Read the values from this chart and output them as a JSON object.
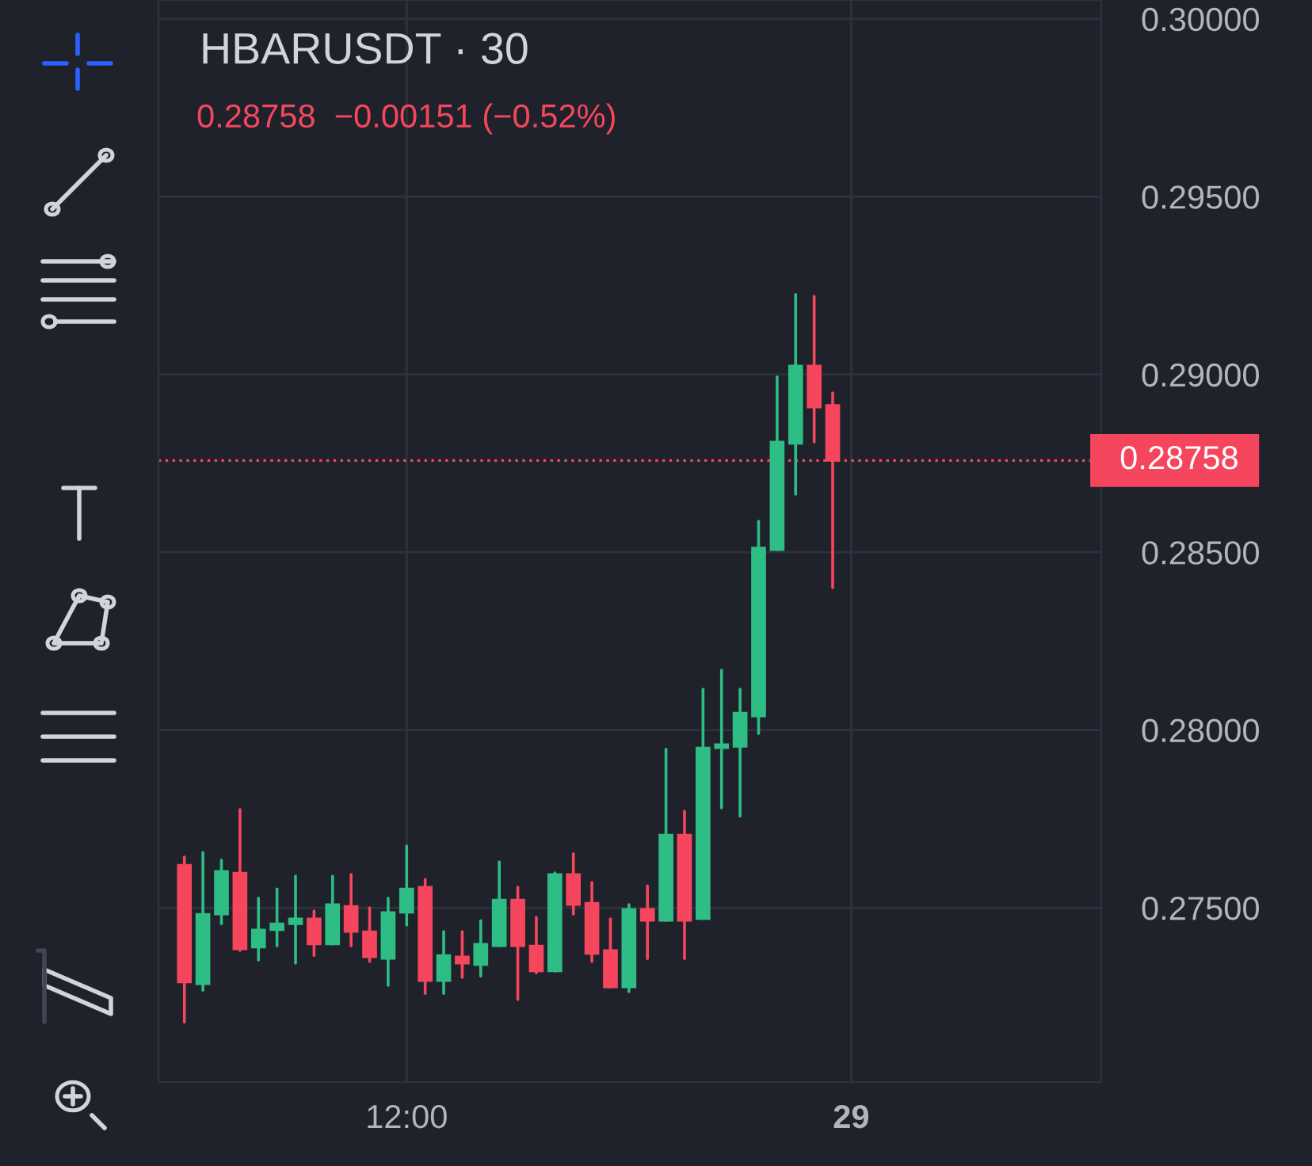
{
  "chart_data": {
    "type": "candlestick",
    "title": "HBARUSDT · 30",
    "subtitle": "0.28758  −0.00151 (−0.52%)",
    "categories": [
      null,
      null,
      null,
      null,
      null,
      null,
      null,
      null,
      null,
      null,
      null,
      null,
      "12:00",
      null,
      null,
      null,
      null,
      null,
      null,
      null,
      null,
      null,
      null,
      null,
      null,
      null,
      null,
      null,
      null,
      null,
      null,
      null,
      null,
      null,
      null,
      null,
      "29",
      null,
      null,
      null,
      null,
      null,
      null,
      null,
      null,
      null,
      null,
      null,
      null,
      null
    ],
    "ohlc": [
      [
        0.2762,
        0.27643,
        0.27179,
        0.27291
      ],
      [
        0.27286,
        0.27656,
        0.27268,
        0.27482
      ],
      [
        0.27482,
        0.27634,
        0.27455,
        0.27603
      ],
      [
        0.27598,
        0.27776,
        0.2738,
        0.27384
      ],
      [
        0.27389,
        0.27527,
        0.27353,
        0.27438
      ],
      [
        0.27438,
        0.27553,
        0.27393,
        0.27455
      ],
      [
        0.27455,
        0.27589,
        0.27344,
        0.27469
      ],
      [
        0.27469,
        0.27491,
        0.27366,
        0.27398
      ],
      [
        0.27398,
        0.27589,
        0.27398,
        0.27509
      ],
      [
        0.27504,
        0.27594,
        0.27393,
        0.27433
      ],
      [
        0.27433,
        0.275,
        0.27349,
        0.27362
      ],
      [
        0.27357,
        0.27527,
        0.27282,
        0.27487
      ],
      [
        0.27487,
        0.27674,
        0.27451,
        0.27553
      ],
      [
        0.27558,
        0.2758,
        0.27259,
        0.27295
      ],
      [
        0.27295,
        0.27433,
        0.27259,
        0.27366
      ],
      [
        0.27362,
        0.27433,
        0.27304,
        0.27344
      ],
      [
        0.2734,
        0.27464,
        0.27308,
        0.27398
      ],
      [
        0.27393,
        0.27629,
        0.27393,
        0.27522
      ],
      [
        0.27522,
        0.27558,
        0.27242,
        0.27393
      ],
      [
        0.27393,
        0.27473,
        0.27317,
        0.27322
      ],
      [
        0.27322,
        0.27598,
        0.27322,
        0.27594
      ],
      [
        0.27594,
        0.27652,
        0.27482,
        0.27509
      ],
      [
        0.27513,
        0.27571,
        0.27349,
        0.27371
      ],
      [
        0.2738,
        0.27469,
        0.27277,
        0.27277
      ],
      [
        0.27277,
        0.27509,
        0.27264,
        0.27496
      ],
      [
        0.27496,
        0.27562,
        0.27357,
        0.27464
      ],
      [
        0.27464,
        0.27946,
        0.27464,
        0.27705
      ],
      [
        0.27705,
        0.27772,
        0.27357,
        0.27464
      ],
      [
        0.27469,
        0.28115,
        0.27469,
        0.2795
      ],
      [
        0.2795,
        0.28168,
        0.27781,
        0.27959
      ],
      [
        0.27954,
        0.28115,
        0.27758,
        0.28048
      ],
      [
        0.28039,
        0.28587,
        0.2799,
        0.28512
      ],
      [
        0.28507,
        0.28993,
        0.28507,
        0.2881
      ],
      [
        0.28806,
        0.29225,
        0.28663,
        0.29024
      ],
      [
        0.29024,
        0.2922,
        0.2881,
        0.28908
      ],
      [
        0.28913,
        0.28948,
        0.284,
        0.28758
      ],
      null,
      null,
      null,
      null,
      null,
      null,
      null,
      null,
      null,
      null,
      null,
      null,
      null,
      null
    ],
    "colors": [
      "#f6465d",
      "#2ebd85",
      "#2ebd85",
      "#f6465d",
      "#2ebd85",
      "#2ebd85",
      "#2ebd85",
      "#f6465d",
      "#2ebd85",
      "#f6465d",
      "#f6465d",
      "#2ebd85",
      "#2ebd85",
      "#f6465d",
      "#2ebd85",
      "#f6465d",
      "#2ebd85",
      "#2ebd85",
      "#f6465d",
      "#f6465d",
      "#2ebd85",
      "#f6465d",
      "#f6465d",
      "#f6465d",
      "#2ebd85",
      "#f6465d",
      "#2ebd85",
      "#f6465d",
      "#2ebd85",
      "#2ebd85",
      "#2ebd85",
      "#2ebd85",
      "#2ebd85",
      "#2ebd85",
      "#f6465d",
      "#f6465d",
      null,
      null,
      null,
      null,
      null,
      null,
      null,
      null,
      null,
      null,
      null,
      null,
      null,
      null
    ],
    "ylim": [
      0.2701,
      0.30053
    ],
    "yticks": [
      {
        "value": 0.275,
        "label": "0.27500"
      },
      {
        "value": 0.28,
        "label": "0.28000"
      },
      {
        "value": 0.285,
        "label": "0.28500"
      },
      {
        "value": 0.29,
        "label": "0.29000"
      },
      {
        "value": 0.295,
        "label": "0.29500"
      },
      {
        "value": 0.3,
        "label": "0.30000"
      }
    ],
    "ref_lines": [
      {
        "axis": "y",
        "value": 0.28758,
        "label": "0.28758",
        "color": "#f6465d",
        "line_style": "dotted"
      }
    ],
    "grid": true
  }
}
